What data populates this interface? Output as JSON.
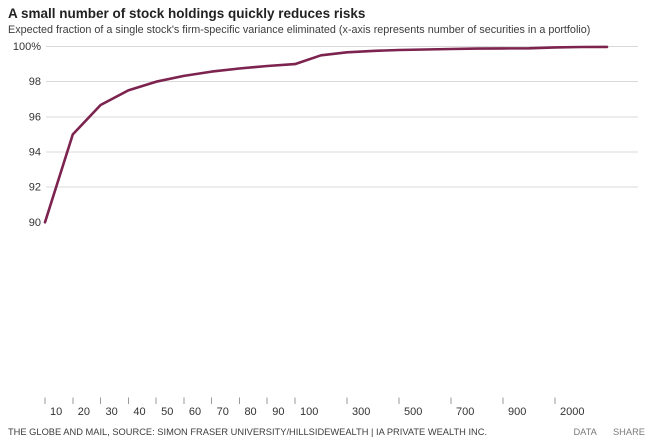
{
  "header": {
    "title": "A small number of stock holdings quickly reduces risks",
    "subtitle": "Expected fraction of a single stock's firm-specific variance eliminated (x-axis represents number of securities in a portfolio)"
  },
  "footer": {
    "source": "THE GLOBE AND MAIL, SOURCE: SIMON FRASER UNIVERSITY/HILLSIDEWEALTH | IA PRIVATE WEALTH INC.",
    "data_label": "DATA",
    "share_label": "SHARE"
  },
  "colors": {
    "line": "#7c234f",
    "grid": "#d9d9d9",
    "tick": "#999999",
    "axis_text": "#333333",
    "title_text": "#222222",
    "background": "#ffffff"
  },
  "chart_data": {
    "type": "line",
    "title": "A small number of stock holdings quickly reduces risks",
    "xlabel": "Number of securities in a portfolio",
    "ylabel": "Expected fraction of a single stock's firm-specific variance eliminated (%)",
    "x": [
      10,
      20,
      30,
      40,
      50,
      60,
      70,
      80,
      90,
      100,
      200,
      300,
      400,
      500,
      600,
      700,
      800,
      900,
      1000,
      2000,
      3000,
      4000
    ],
    "y": [
      90,
      95,
      96.67,
      97.5,
      98,
      98.33,
      98.57,
      98.75,
      98.89,
      99,
      99.5,
      99.67,
      99.75,
      99.8,
      99.83,
      99.86,
      99.88,
      99.89,
      99.9,
      99.95,
      99.97,
      99.98
    ],
    "series_name": "Fraction of firm-specific variance eliminated",
    "x_axis": {
      "scale": "piecewise-log",
      "tick_values": [
        10,
        20,
        30,
        40,
        50,
        60,
        70,
        80,
        90,
        100,
        300,
        500,
        700,
        900,
        2000
      ],
      "tick_labels": [
        "10",
        "20",
        "30",
        "40",
        "50",
        "60",
        "70",
        "80",
        "90",
        "100",
        "300",
        "500",
        "700",
        "900",
        "2000"
      ],
      "range": [
        10,
        4000
      ]
    },
    "y_axis": {
      "tick_values": [
        100,
        98,
        96,
        94,
        92,
        90
      ],
      "tick_labels": [
        "100%",
        "98",
        "96",
        "94",
        "92",
        "90"
      ],
      "gridline_values": [
        100,
        98,
        96,
        94,
        92
      ],
      "range": [
        90,
        100
      ]
    },
    "legend": "none",
    "grid": "horizontal-only"
  }
}
